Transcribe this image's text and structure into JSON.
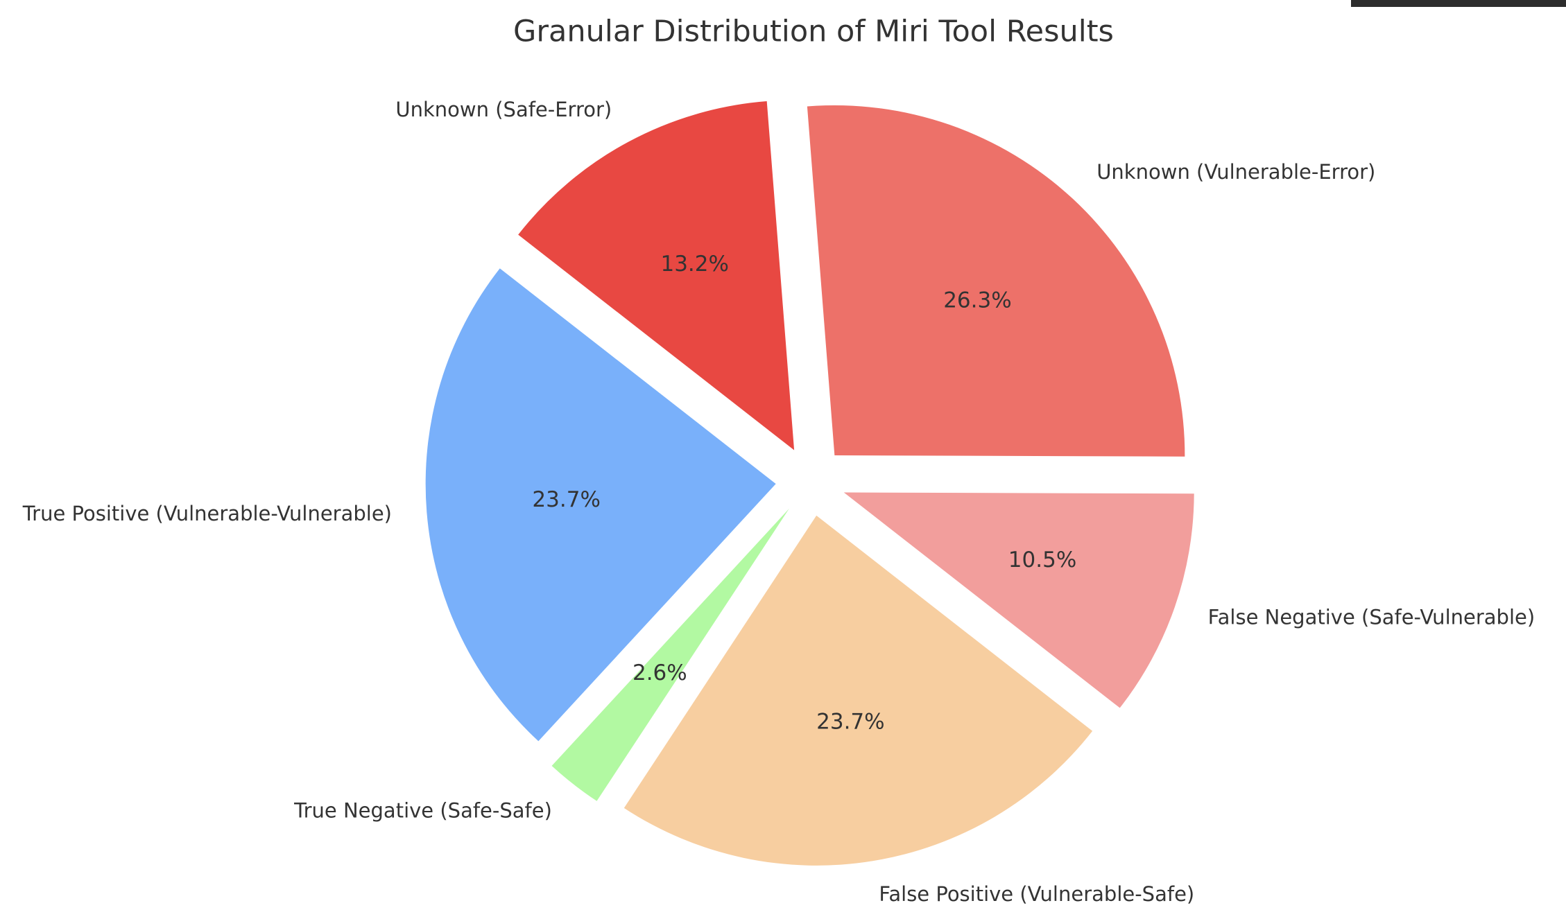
{
  "chart_data": {
    "type": "pie",
    "title": "Granular Distribution of Miri Tool Results",
    "categories": [
      "True Positive (Vulnerable-Vulnerable)",
      "True Negative (Safe-Safe)",
      "False Positive (Vulnerable-Safe)",
      "False Negative (Safe-Vulnerable)",
      "Unknown (Vulnerable-Error)",
      "Unknown (Safe-Error)"
    ],
    "values": [
      23.7,
      2.6,
      23.7,
      10.5,
      26.3,
      13.2
    ],
    "value_labels": [
      "23.7%",
      "2.6%",
      "23.7%",
      "10.5%",
      "26.3%",
      "13.2%"
    ],
    "colors": [
      "#79b0fa",
      "#b2f9a2",
      "#f7cea0",
      "#f29e9c",
      "#ed7169",
      "#e84842"
    ],
    "startangle": 142,
    "explode": 0.1
  }
}
